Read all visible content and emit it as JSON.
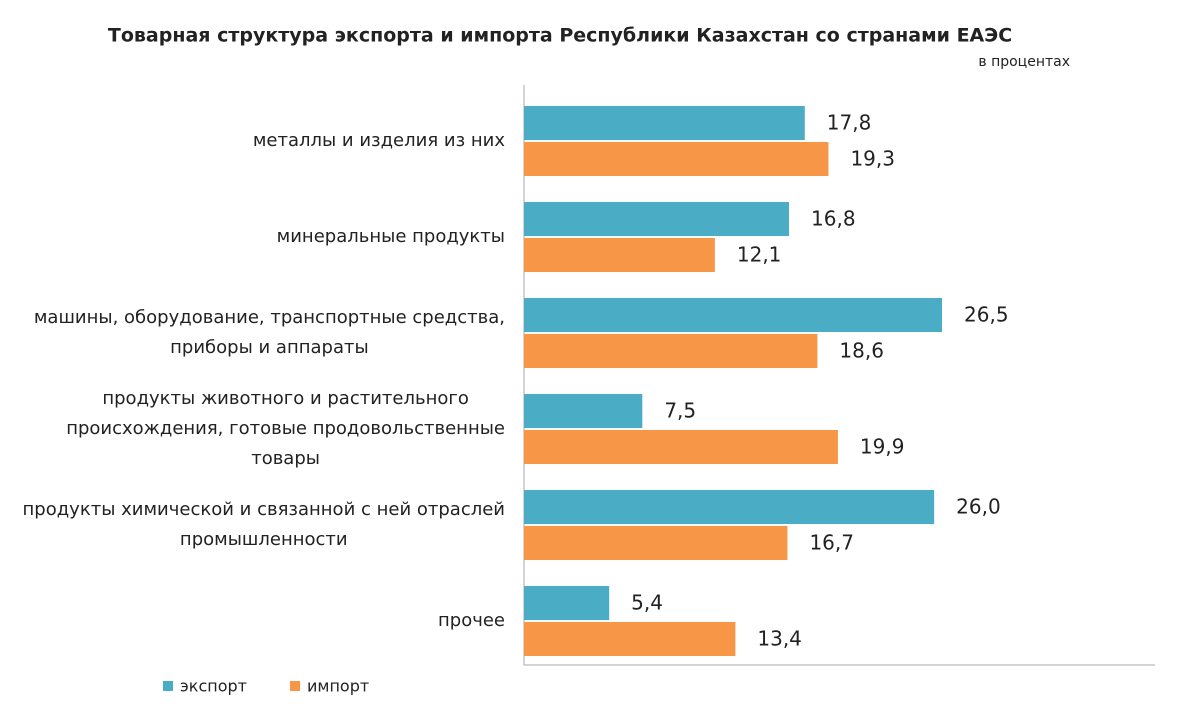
{
  "chart_data": {
    "type": "hbar",
    "title": "Товарная  структура  экспорта  и импорта  Республики  Казахстан  со странами  ЕАЭС",
    "subtitle": "в процентах",
    "categories": [
      "металлы и изделия из них",
      "минеральные  продукты",
      "машины, оборудование, транспортные средства,\nприборы и аппараты",
      "продукты животного  и растительного\nпроисхождения,  готовые продовольственные\nтовары",
      "продукты химической  и связанной с ней отраслей\nпромышленности",
      "прочее"
    ],
    "series": [
      {
        "name": "экспорт",
        "color": "#4bacc6",
        "values": [
          17.8,
          16.8,
          26.5,
          7.5,
          26.0,
          5.4
        ],
        "value_labels": [
          "17,8",
          "16,8",
          "26,5",
          "7,5",
          "26,0",
          "5,4"
        ]
      },
      {
        "name": "импорт",
        "color": "#f79646",
        "values": [
          19.3,
          12.1,
          18.6,
          19.9,
          16.7,
          13.4
        ],
        "value_labels": [
          "19,3",
          "12,1",
          "18,6",
          "19,9",
          "16,7",
          "13,4"
        ]
      }
    ],
    "xlim": [
      0,
      40
    ]
  }
}
